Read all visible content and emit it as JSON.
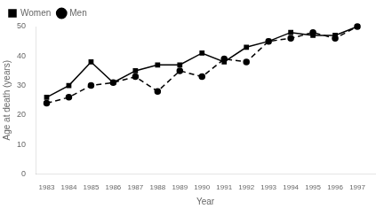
{
  "chart_data": {
    "type": "line",
    "x": [
      1983,
      1984,
      1985,
      1986,
      1987,
      1988,
      1989,
      1990,
      1991,
      1992,
      1993,
      1994,
      1995,
      1996,
      1997
    ],
    "series": [
      {
        "name": "Women",
        "color": "#000000",
        "line_style": "solid",
        "marker": "square",
        "values": [
          26,
          30,
          38,
          31,
          35,
          37,
          37,
          41,
          38,
          43,
          45,
          48,
          47,
          47,
          50
        ]
      },
      {
        "name": "Men",
        "color": "#000000",
        "line_style": "dashed",
        "marker": "circle",
        "values": [
          24,
          26,
          30,
          31,
          33,
          28,
          35,
          33,
          39,
          38,
          45,
          46,
          48,
          46,
          50
        ]
      }
    ],
    "xlabel": "Year",
    "ylabel": "Age at death (years)",
    "xlim": [
      1982.5,
      1997.8
    ],
    "xticks": [
      1983,
      1984,
      1985,
      1986,
      1987,
      1988,
      1989,
      1990,
      1991,
      1992,
      1993,
      1994,
      1995,
      1996,
      1997
    ],
    "ylim": [
      0,
      50
    ],
    "yticks": [
      0,
      10,
      20,
      30,
      40,
      50
    ],
    "grid": false,
    "legend": "upper left"
  }
}
